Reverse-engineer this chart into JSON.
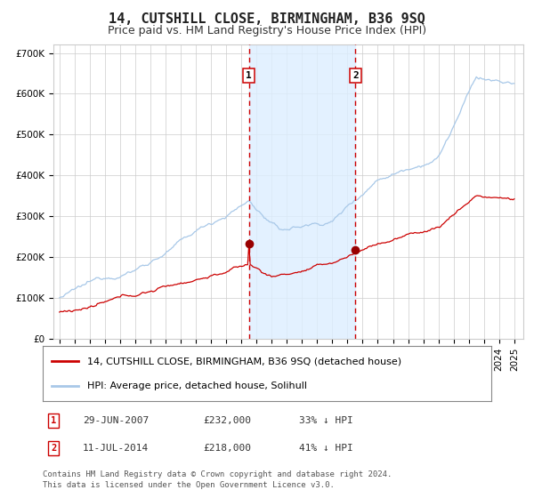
{
  "title": "14, CUTSHILL CLOSE, BIRMINGHAM, B36 9SQ",
  "subtitle": "Price paid vs. HM Land Registry's House Price Index (HPI)",
  "ylim": [
    0,
    720000
  ],
  "yticks": [
    0,
    100000,
    200000,
    300000,
    400000,
    500000,
    600000,
    700000
  ],
  "ytick_labels": [
    "£0",
    "£100K",
    "£200K",
    "£300K",
    "£400K",
    "£500K",
    "£600K",
    "£700K"
  ],
  "hpi_color": "#a8c8e8",
  "price_color": "#cc0000",
  "marker_color": "#990000",
  "shade_color": "#ddeeff",
  "dashed_color": "#cc0000",
  "grid_color": "#cccccc",
  "background_color": "#ffffff",
  "sale1_date_num": 2007.49,
  "sale1_price": 232000,
  "sale1_label": "1",
  "sale1_date_str": "29-JUN-2007",
  "sale1_pct": "33% ↓ HPI",
  "sale2_date_num": 2014.53,
  "sale2_price": 218000,
  "sale2_label": "2",
  "sale2_date_str": "11-JUL-2014",
  "sale2_pct": "41% ↓ HPI",
  "legend_label1": "14, CUTSHILL CLOSE, BIRMINGHAM, B36 9SQ (detached house)",
  "legend_label2": "HPI: Average price, detached house, Solihull",
  "footnote1": "Contains HM Land Registry data © Crown copyright and database right 2024.",
  "footnote2": "This data is licensed under the Open Government Licence v3.0.",
  "title_fontsize": 11,
  "subtitle_fontsize": 9,
  "tick_fontsize": 7.5,
  "legend_fontsize": 8,
  "footnote_fontsize": 6.5,
  "xlim_left": 1994.6,
  "xlim_right": 2025.6
}
